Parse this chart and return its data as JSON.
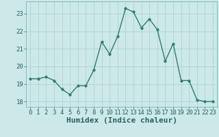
{
  "x": [
    0,
    1,
    2,
    3,
    4,
    5,
    6,
    7,
    8,
    9,
    10,
    11,
    12,
    13,
    14,
    15,
    16,
    17,
    18,
    19,
    20,
    21,
    22,
    23
  ],
  "y": [
    19.3,
    19.3,
    19.4,
    19.2,
    18.7,
    18.4,
    18.9,
    18.9,
    19.8,
    21.4,
    20.7,
    21.7,
    23.3,
    23.1,
    22.2,
    22.7,
    22.1,
    20.3,
    21.3,
    19.2,
    19.2,
    18.1,
    18.0,
    18.0
  ],
  "line_color": "#2e7d6e",
  "marker": "o",
  "markersize": 2.5,
  "linewidth": 1.0,
  "background_color": "#cce8e8",
  "grid_color": "#aacfcf",
  "xlabel": "Humidex (Indice chaleur)",
  "ylim": [
    17.7,
    23.7
  ],
  "xlim": [
    -0.5,
    23.5
  ],
  "yticks": [
    18,
    19,
    20,
    21,
    22,
    23
  ],
  "xticks": [
    0,
    1,
    2,
    3,
    4,
    5,
    6,
    7,
    8,
    9,
    10,
    11,
    12,
    13,
    14,
    15,
    16,
    17,
    18,
    19,
    20,
    21,
    22,
    23
  ],
  "tick_label_fontsize": 6.5,
  "xlabel_fontsize": 8,
  "tick_color": "#2a6060",
  "spine_color": "#6aacac"
}
